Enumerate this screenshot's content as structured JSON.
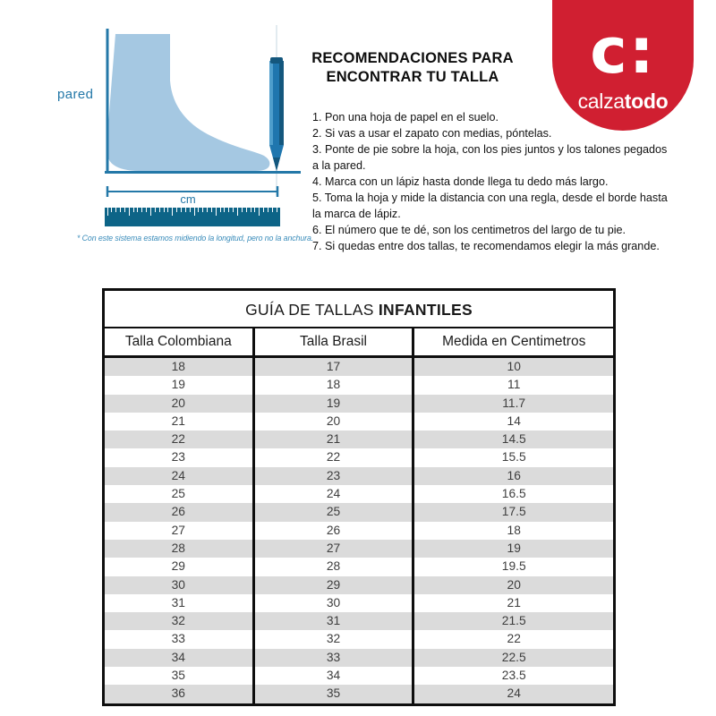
{
  "illustration": {
    "wall_label": "pared",
    "cm_label": "cm",
    "note": "* Con este sistema estamos midiendo la longitud, pero no la anchura."
  },
  "recommendations": {
    "title_line1": "RECOMENDACIONES PARA",
    "title_line2": "ENCONTRAR TU TALLA",
    "steps": [
      "1. Pon una hoja de papel en el suelo.",
      "2. Si vas a usar el zapato con medias, póntelas.",
      "3. Ponte de pie sobre la hoja, con los pies juntos y los talones pegados a la pared.",
      "4. Marca con un lápiz hasta donde llega tu dedo más largo.",
      "5. Toma la hoja y mide la distancia con una regla, desde el borde hasta la marca de lápiz.",
      "6. El número que te dé, son los centimetros del largo de tu pie.",
      "7. Si quedas entre dos tallas, te recomendamos elegir la más grande."
    ]
  },
  "logo": {
    "monogram": "c:",
    "name_regular": "calza",
    "name_bold": "todo"
  },
  "size_table": {
    "title_regular": "GUÍA DE TALLAS ",
    "title_bold": "INFANTILES",
    "columns": [
      "Talla Colombiana",
      "Talla Brasil",
      "Medida en Centimetros"
    ],
    "rows": [
      [
        "18",
        "17",
        "10"
      ],
      [
        "19",
        "18",
        "11"
      ],
      [
        "20",
        "19",
        "11.7"
      ],
      [
        "21",
        "20",
        "14"
      ],
      [
        "22",
        "21",
        "14.5"
      ],
      [
        "23",
        "22",
        "15.5"
      ],
      [
        "24",
        "23",
        "16"
      ],
      [
        "25",
        "24",
        "16.5"
      ],
      [
        "26",
        "25",
        "17.5"
      ],
      [
        "27",
        "26",
        "18"
      ],
      [
        "28",
        "27",
        "19"
      ],
      [
        "29",
        "28",
        "19.5"
      ],
      [
        "30",
        "29",
        "20"
      ],
      [
        "31",
        "30",
        "21"
      ],
      [
        "32",
        "31",
        "21.5"
      ],
      [
        "33",
        "32",
        "22"
      ],
      [
        "34",
        "33",
        "22.5"
      ],
      [
        "35",
        "34",
        "23.5"
      ],
      [
        "36",
        "35",
        "24"
      ]
    ]
  },
  "theme": {
    "brand_red": "#D01F31",
    "line_blue": "#2478A8",
    "foot_blue": "#A5C8E2",
    "pencil_blue": "#1F76AE",
    "pencil_dark": "#14577D",
    "pencil_light": "#4E9ECC",
    "ruler_blue": "#0D6487",
    "note_blue": "#3A8CBA",
    "stripe_gray": "#DBDBDB",
    "border_black": "#0E0E0E"
  }
}
